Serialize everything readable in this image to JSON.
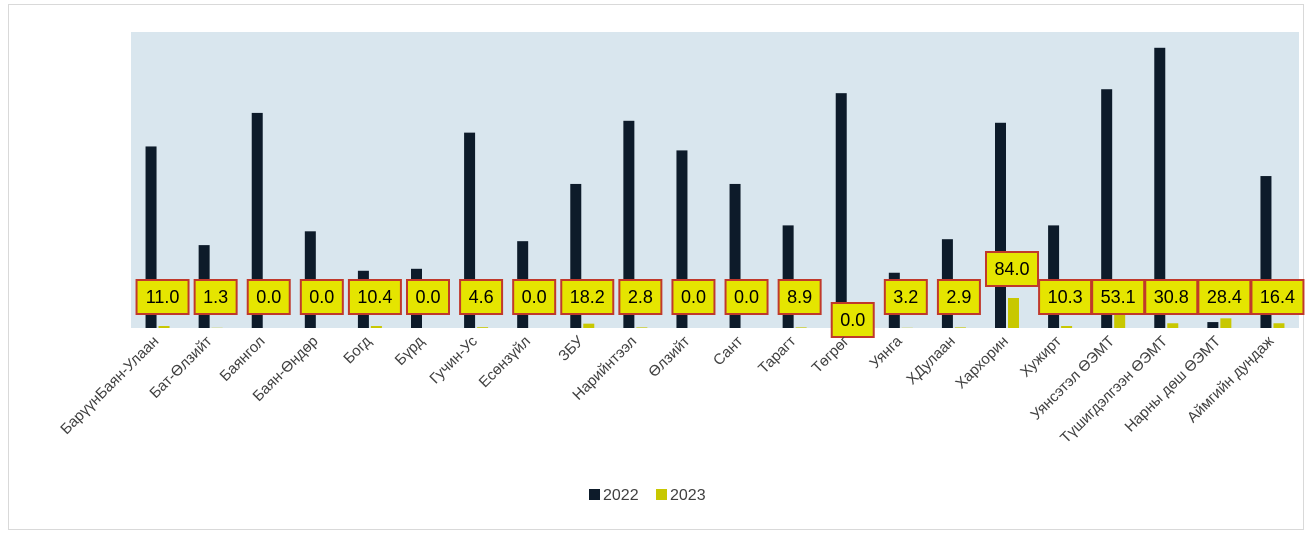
{
  "chart_data": {
    "type": "bar",
    "categories": [
      "БарүүнБаян-Улаан",
      "Бат-Өлзийт",
      "Баянгол",
      "Баян-Өндөр",
      "Богд",
      "Бүрд",
      "Гучин-Ус",
      "Есөнзүйл",
      "ЗБУ",
      "Нарийнтээл",
      "Өлзийт",
      "Сант",
      "Тарагт",
      "Төгрөг",
      "Уянга",
      "ХДулаан",
      "Хархорин",
      "Хужирт",
      "Уянсэтэл ӨЭМТ",
      "Түшигдэлгээн ӨЭМТ",
      "Нарны дөш ӨЭМТ",
      "Аймгийн дундаж"
    ],
    "series": [
      {
        "name": "2022",
        "color": "#0d1b2a",
        "values": [
          92,
          42,
          109,
          49,
          29,
          30,
          99,
          44,
          73,
          105,
          90,
          73,
          52,
          119,
          28,
          45,
          104,
          52,
          121,
          142,
          3,
          77
        ]
      },
      {
        "name": "2023",
        "color": "#c8c800",
        "values": [
          1.0,
          0.1,
          0.0,
          0.0,
          1.0,
          0.0,
          0.4,
          0.0,
          2.2,
          0.3,
          0.0,
          0.0,
          0.3,
          0.0,
          0.1,
          0.3,
          15.2,
          1.0,
          8.4,
          2.4,
          4.9,
          2.4
        ]
      }
    ],
    "data_labels": [
      "11.0",
      "1.3",
      "0.0",
      "0.0",
      "10.4",
      "0.0",
      "4.6",
      "0.0",
      "18.2",
      "2.8",
      "0.0",
      "0.0",
      "8.9",
      "0.0",
      "3.2",
      "2.9",
      "84.0",
      "10.3",
      "53.1",
      "30.8",
      "28.4",
      "16.4"
    ],
    "ylim": [
      0,
      150
    ],
    "grid": false,
    "legend": "bottom",
    "plot_background": "#d9e6ee",
    "label_fill": "#e5e500",
    "label_border": "#c0392b"
  }
}
